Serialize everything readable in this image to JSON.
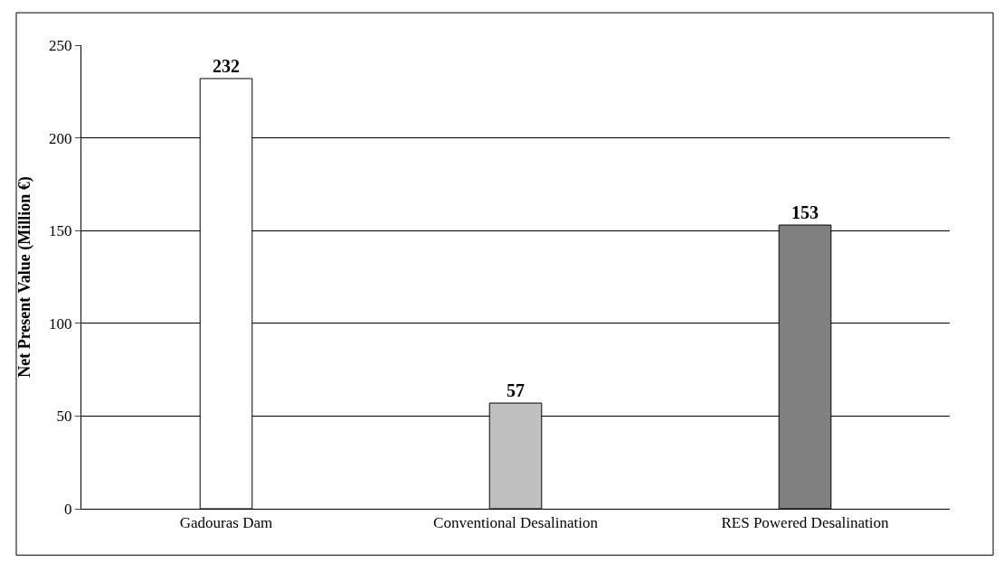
{
  "chart_data": {
    "type": "bar",
    "ylabel": "Net Present Value (Million €)",
    "categories": [
      "Gadouras Dam",
      "Conventional Desalination",
      "RES Powered Desalination"
    ],
    "values": [
      232,
      57,
      153
    ],
    "colors": [
      "#ffffff",
      "#c0c0c0",
      "#808080"
    ],
    "ylim": [
      0,
      250
    ],
    "yticks": [
      0,
      50,
      100,
      150,
      200,
      250
    ],
    "grid": "y",
    "data_labels": true
  }
}
